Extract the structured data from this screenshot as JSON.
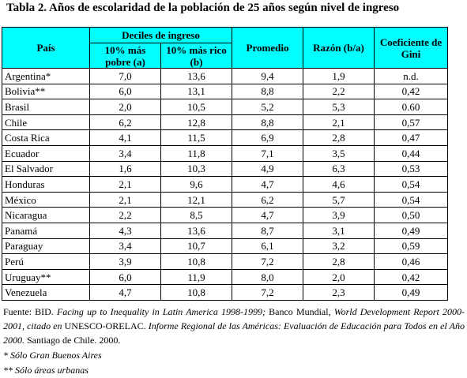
{
  "header": {
    "title": "Tabla 2. Años de escolaridad de la población de 25 años según nivel de ingreso"
  },
  "table": {
    "columns": {
      "country": "País",
      "deciles": "Deciles de ingreso",
      "poor": "10% más pobre (a)",
      "rich": "10% más rico (b)",
      "mean": "Promedio",
      "ratio": "Razón (b/a)",
      "gini": "Coeficiente de Gini"
    },
    "rows": [
      [
        "Argentina*",
        "7,0",
        "13,6",
        "9,4",
        "1,9",
        "n.d."
      ],
      [
        "Bolivia**",
        "6,0",
        "13,1",
        "8,8",
        "2,2",
        "0,42"
      ],
      [
        "Brasil",
        "2,0",
        "10,5",
        "5,2",
        "5,3",
        "0.60"
      ],
      [
        "Chile",
        "6,2",
        "12,8",
        "8,8",
        "2,1",
        "0,57"
      ],
      [
        "Costa Rica",
        "4,1",
        "11,5",
        "6,9",
        "2,8",
        "0,47"
      ],
      [
        "Ecuador",
        "3,4",
        "11,8",
        "7,1",
        "3,5",
        "0,44"
      ],
      [
        "El Salvador",
        "1,6",
        "10,3",
        "4,9",
        "6,3",
        "0,53"
      ],
      [
        "Honduras",
        "2,1",
        "9,6",
        "4,7",
        "4,6",
        "0,54"
      ],
      [
        "México",
        "2,1",
        "12,1",
        "6,2",
        "5,7",
        "0,54"
      ],
      [
        "Nicaragua",
        "2,2",
        "8,5",
        "4,7",
        "3,9",
        "0,50"
      ],
      [
        "Panamá",
        "4,3",
        "13,6",
        "8,7",
        "3,1",
        "0,49"
      ],
      [
        "Paraguay",
        "3,4",
        "10,7",
        "6,1",
        "3,2",
        "0,59"
      ],
      [
        "Perú",
        "3,9",
        "10,8",
        "7,2",
        "2,8",
        "0,46"
      ],
      [
        "Uruguay**",
        "6,0",
        "11,9",
        "8,0",
        "2,0",
        "0,42"
      ],
      [
        "Venezuela",
        "4,7",
        "10,8",
        "7,2",
        "2,3",
        "0,49"
      ]
    ]
  },
  "source": {
    "parts": [
      "Fuente: BID. ",
      "Facing up to Inequality in Latin America 1998-1999;",
      " Banco Mundial, ",
      "World Development Report 2000-2001, citado en",
      " UNESCO-ORELAC. ",
      "Informe Regional de las Américas: Evaluación de Educación para Todos en el Año 2000.",
      " Santiago de Chile. 2000."
    ]
  },
  "notes": [
    "* Sólo Gran Buenos Aires",
    "** Sólo áreas urbanas"
  ]
}
